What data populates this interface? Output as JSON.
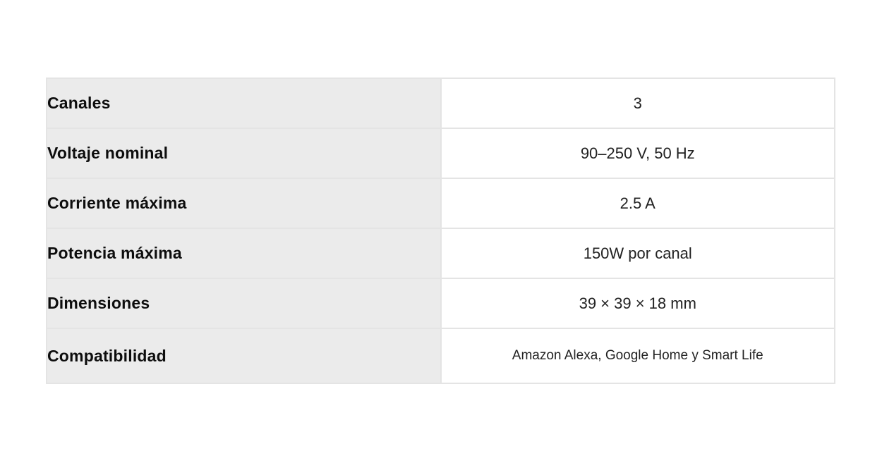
{
  "table": {
    "name": "product-specifications",
    "colors": {
      "label_background": "#ebebeb",
      "value_background": "#ffffff",
      "border": "#e4e4e4",
      "label_text": "#0d0d0d",
      "value_text": "#222222"
    },
    "rows": [
      {
        "label": "Canales",
        "value": "3"
      },
      {
        "label": "Voltaje nominal",
        "value": "90–250 V, 50 Hz"
      },
      {
        "label": "Corriente máxima",
        "value": "2.5 A"
      },
      {
        "label": "Potencia máxima",
        "value": "150W por canal"
      },
      {
        "label": "Dimensiones",
        "value": "39 × 39 × 18 mm"
      },
      {
        "label": "Compatibilidad",
        "value": "Amazon Alexa, Google Home y Smart Life"
      }
    ]
  }
}
